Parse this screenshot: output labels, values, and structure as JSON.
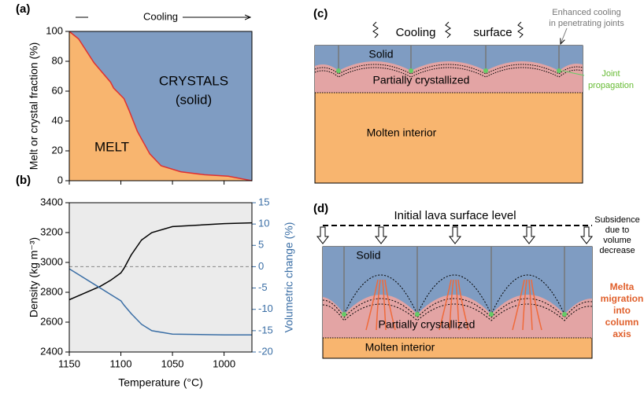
{
  "chart_data": [
    {
      "type": "area",
      "panel_label": "(a)",
      "title": "Cooling",
      "ylabel": "Melt or crystal fraction (%)",
      "x": [
        1150,
        1141,
        1126,
        1110,
        1107,
        1097,
        1092,
        1084,
        1072,
        1061,
        1042,
        1019,
        996,
        973
      ],
      "values": [
        100,
        95,
        79,
        66,
        62,
        55,
        47,
        33,
        18,
        10,
        6,
        4,
        3,
        0
      ],
      "color": "#f8b56f",
      "line_color": "#e03030",
      "background_color": "#7f9cc2",
      "annotations": [
        "MELT",
        "CRYSTALS",
        "(solid)"
      ],
      "xlim": [
        1150,
        973
      ],
      "xticks": [
        1150,
        1100,
        1050,
        1000
      ],
      "ylim": [
        0,
        100
      ],
      "yticks": [
        0,
        20,
        40,
        60,
        80,
        100
      ]
    },
    {
      "type": "line",
      "panel_label": "(b)",
      "xlabel": "Temperature (°C)",
      "ylabel": "Density (kg m⁻³)",
      "y2label": "Volumetric change (%)",
      "x": [
        1150,
        1140,
        1120,
        1110,
        1100,
        1097,
        1090,
        1080,
        1070,
        1050,
        1000,
        973
      ],
      "series": [
        {
          "color": "#000000",
          "values": [
            2750,
            2780,
            2840,
            2880,
            2930,
            2960,
            3050,
            3150,
            3200,
            3240,
            3260,
            3265
          ]
        },
        {
          "color": "#3a6ea5",
          "axis": "y2",
          "values": [
            -0.5,
            -2,
            -5,
            -6.5,
            -8,
            -9,
            -11,
            -13.5,
            -15,
            -15.8,
            -16,
            -16
          ]
        }
      ],
      "reference_y2": 0,
      "background_color": "#ebebeb",
      "xlim": [
        1150,
        973
      ],
      "xticks": [
        1150,
        1100,
        1050,
        1000
      ],
      "ylim": [
        2400,
        3400
      ],
      "yticks": [
        2400,
        2600,
        2800,
        3000,
        3200,
        3400
      ],
      "y2lim": [
        -20,
        15
      ],
      "y2ticks": [
        -20,
        -15,
        -10,
        -5,
        0,
        5,
        10,
        15
      ]
    }
  ],
  "diagrams": {
    "c": {
      "panel_label": "(c)",
      "cooling": "Cooling",
      "surface": "surface",
      "enhanced": [
        "Enhanced cooling",
        "in penetrating joints"
      ],
      "solid": "Solid",
      "partial": "Partially crystallized",
      "joint": [
        "Joint",
        "propagation"
      ],
      "molten": "Molten interior"
    },
    "d": {
      "panel_label": "(d)",
      "initial": "Initial lava surface level",
      "subsidence": [
        "Subsidence",
        "due to",
        "volume",
        "decrease"
      ],
      "solid": "Solid",
      "melt": [
        "Melta",
        "migration",
        "into",
        "column",
        "axis"
      ],
      "partial": "Partially crystallized",
      "molten": "Molten interior"
    }
  }
}
